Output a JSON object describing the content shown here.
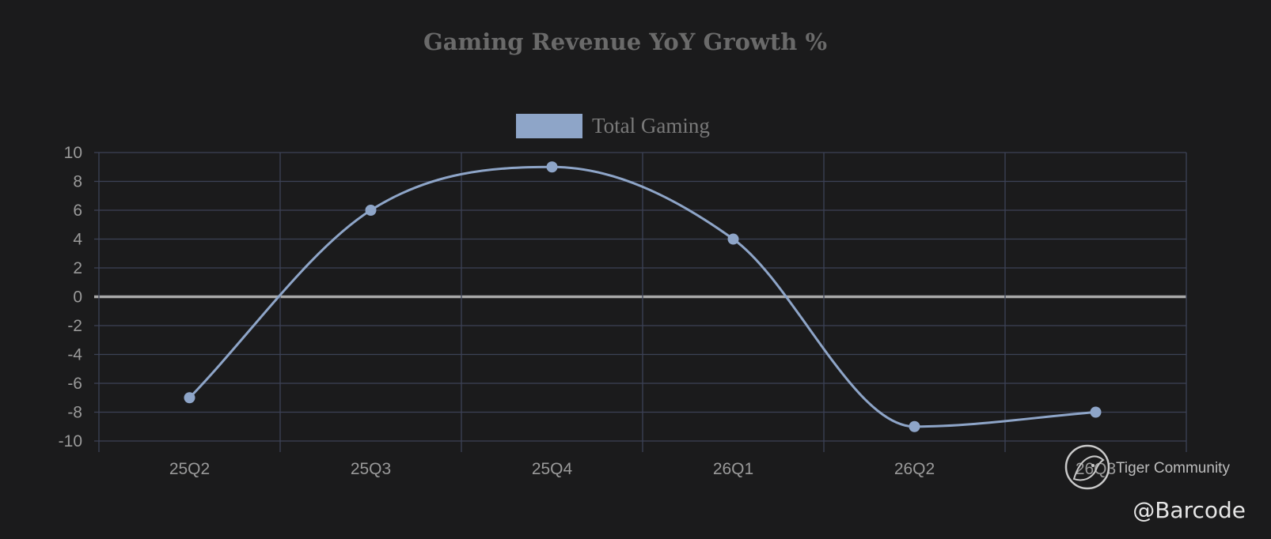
{
  "chart_data": {
    "type": "line",
    "title": "Gaming Revenue YoY Growth %",
    "categories": [
      "25Q2",
      "25Q3",
      "25Q4",
      "26Q1",
      "26Q2",
      "26Q3"
    ],
    "series": [
      {
        "name": "Total Gaming",
        "values": [
          -7,
          6,
          9,
          4,
          -9,
          -8
        ],
        "color": "#8ea5c8"
      }
    ],
    "ylim": [
      -10,
      10
    ],
    "yticks": [
      10,
      8,
      6,
      4,
      2,
      0,
      -2,
      -4,
      -6,
      -8,
      -10
    ],
    "grid": true,
    "legend_position": "top-center",
    "xlabel": "",
    "ylabel": ""
  },
  "watermark": {
    "logo_icon": "tiger-logo-icon",
    "brand": "Tiger Community",
    "handle": "@Barcode"
  },
  "colors": {
    "background": "#1b1b1c",
    "grid": "#3c4256",
    "zero_line": "#a9a9a9",
    "series": "#8ea5c8"
  }
}
